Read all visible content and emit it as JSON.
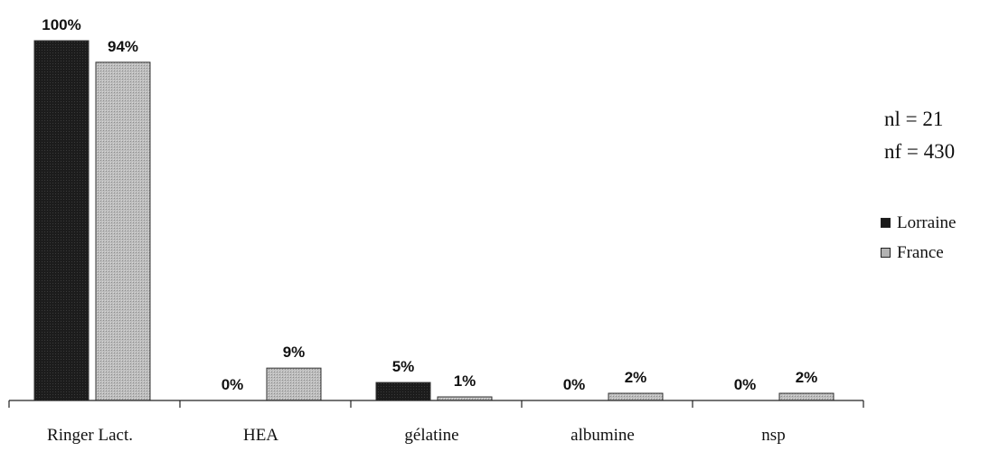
{
  "chart_data": {
    "type": "bar",
    "categories": [
      "Ringer Lact.",
      "HEA",
      "gélatine",
      "albumine",
      "nsp"
    ],
    "series": [
      {
        "name": "Lorraine",
        "values": [
          100,
          0,
          5,
          0,
          0
        ],
        "labels": [
          "100%",
          "0%",
          "5%",
          "0%",
          "0%"
        ],
        "color": "#1a1a1a"
      },
      {
        "name": "France",
        "values": [
          94,
          9,
          1,
          2,
          2
        ],
        "labels": [
          "94%",
          "9%",
          "1%",
          "2%",
          "2%"
        ],
        "color": "#b3b3b3"
      }
    ],
    "ylim": [
      0,
      100
    ],
    "grid": false,
    "legend_position": "right"
  },
  "notes": {
    "nl": "nl = 21",
    "nf": "nf = 430"
  }
}
